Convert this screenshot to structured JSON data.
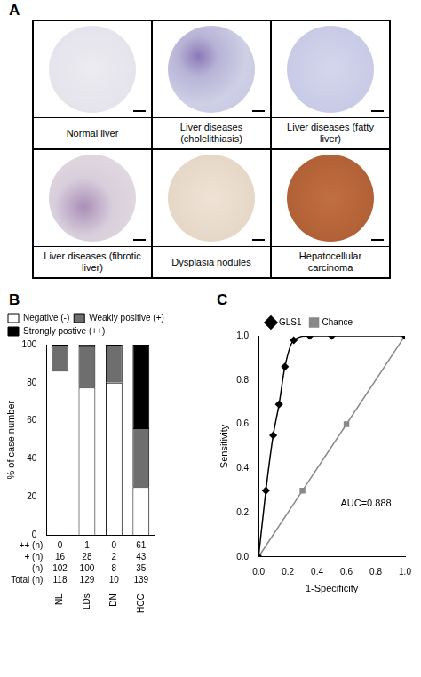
{
  "panel_a": {
    "panel": "A",
    "images": [
      "Normal liver",
      "Liver diseases (cholelithiasis)",
      "Liver diseases (fatty liver)",
      "Liver diseases (fibrotic liver)",
      "Dysplasia nodules",
      "Hepatocellular carcinoma"
    ]
  },
  "chart_data": [
    {
      "panel": "B",
      "type": "bar",
      "stacked": true,
      "legend": "top",
      "grid": false,
      "y_label": "% of case number",
      "categories": [
        "NL",
        "LDs",
        "DN",
        "HCC"
      ],
      "ylim": [
        0,
        100
      ],
      "yticks": [
        0,
        20,
        40,
        60,
        80,
        100
      ],
      "series": [
        {
          "name": "Negative (-)",
          "color": "#ffffff",
          "values": [
            86.4,
            77.5,
            80,
            25.2
          ]
        },
        {
          "name": "Weakly positive (+)",
          "color": "#6e6e6e",
          "values": [
            13.6,
            21.7,
            20,
            30.9
          ]
        },
        {
          "name": "Strongly postive (++)",
          "color": "#000000",
          "values": [
            0,
            0.8,
            0,
            43.9
          ]
        }
      ],
      "table": {
        "rows": [
          {
            "label": "++ (n)",
            "values": [
              0,
              1,
              0,
              61
            ]
          },
          {
            "label": "+ (n)",
            "values": [
              16,
              28,
              2,
              43
            ]
          },
          {
            "label": "- (n)",
            "values": [
              102,
              100,
              8,
              35
            ]
          },
          {
            "label": "Total (n)",
            "values": [
              118,
              129,
              10,
              139
            ]
          }
        ]
      }
    },
    {
      "panel": "C",
      "type": "line",
      "legend": "top",
      "grid": false,
      "x_label": "1-Specificity",
      "y_label": "Sensitivity",
      "xlim": [
        0,
        1
      ],
      "ylim": [
        0,
        1
      ],
      "xticks": [
        {
          "value": 0,
          "label": "0.0"
        },
        0.2,
        0.4,
        0.6,
        0.8,
        {
          "value": 1,
          "label": "1.0"
        }
      ],
      "yticks": [
        {
          "value": 0,
          "label": "0.0"
        },
        0.2,
        0.4,
        0.6,
        0.8,
        {
          "value": 1,
          "label": "1.0"
        }
      ],
      "series": [
        {
          "name": "GLS1",
          "color": "#000000",
          "marker": "diamond",
          "x": [
            0,
            0.05,
            0.1,
            0.14,
            0.18,
            0.24,
            0.35,
            0.5,
            1.0
          ],
          "values": [
            0,
            0.3,
            0.55,
            0.69,
            0.86,
            0.98,
            1.0,
            1.0,
            1.0
          ]
        },
        {
          "name": "Chance",
          "color": "#888888",
          "marker": "square",
          "x": [
            0,
            0.3,
            0.6,
            1.0
          ],
          "values": [
            0,
            0.3,
            0.6,
            1.0
          ]
        }
      ],
      "annotations": [
        "AUC=0.888"
      ]
    }
  ]
}
